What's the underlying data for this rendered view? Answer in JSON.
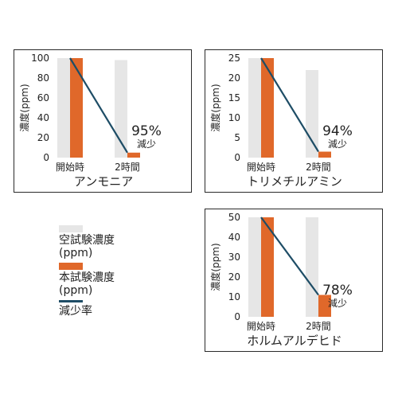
{
  "colors": {
    "blank": "#e6e6e6",
    "test": "#e0682a",
    "rate": "#1e4d66"
  },
  "legend": {
    "items": [
      {
        "label": "空試験濃度\n(ppm)",
        "kind": "swatch",
        "color": "#e6e6e6"
      },
      {
        "label": "本試験濃度\n(ppm)",
        "kind": "swatch",
        "color": "#e0682a"
      },
      {
        "label": "減少率",
        "kind": "line",
        "color": "#1e4d66"
      }
    ]
  },
  "chart_data": [
    {
      "type": "bar",
      "title": "アンモニア",
      "ylabel": "濃度(ppm)",
      "categories": [
        "開始時",
        "2時間"
      ],
      "ylim": [
        0,
        100
      ],
      "yticks": [
        0,
        20,
        40,
        60,
        80,
        100
      ],
      "series": [
        {
          "name": "空試験濃度(ppm)",
          "values": [
            100,
            98
          ]
        },
        {
          "name": "本試験濃度(ppm)",
          "values": [
            100,
            5
          ]
        }
      ],
      "reduction_line": [
        100,
        5
      ],
      "annotation": {
        "percent": "95%",
        "text": "減少"
      }
    },
    {
      "type": "bar",
      "title": "トリメチルアミン",
      "ylabel": "濃度(ppm)",
      "categories": [
        "開始時",
        "2時間"
      ],
      "ylim": [
        0,
        25
      ],
      "yticks": [
        0,
        5,
        10,
        15,
        20,
        25
      ],
      "series": [
        {
          "name": "空試験濃度(ppm)",
          "values": [
            25,
            22
          ]
        },
        {
          "name": "本試験濃度(ppm)",
          "values": [
            25,
            1.5
          ]
        }
      ],
      "reduction_line": [
        25,
        1.5
      ],
      "annotation": {
        "percent": "94%",
        "text": "減少"
      }
    },
    {
      "type": "bar",
      "title": "ホルムアルデヒド",
      "ylabel": "濃度(ppm)",
      "categories": [
        "開始時",
        "2時間"
      ],
      "ylim": [
        0,
        50
      ],
      "yticks": [
        0,
        10,
        20,
        30,
        40,
        50
      ],
      "series": [
        {
          "name": "空試験濃度(ppm)",
          "values": [
            50,
            50
          ]
        },
        {
          "name": "本試験濃度(ppm)",
          "values": [
            50,
            11
          ]
        }
      ],
      "reduction_line": [
        50,
        11
      ],
      "annotation": {
        "percent": "78%",
        "text": "減少"
      }
    }
  ]
}
